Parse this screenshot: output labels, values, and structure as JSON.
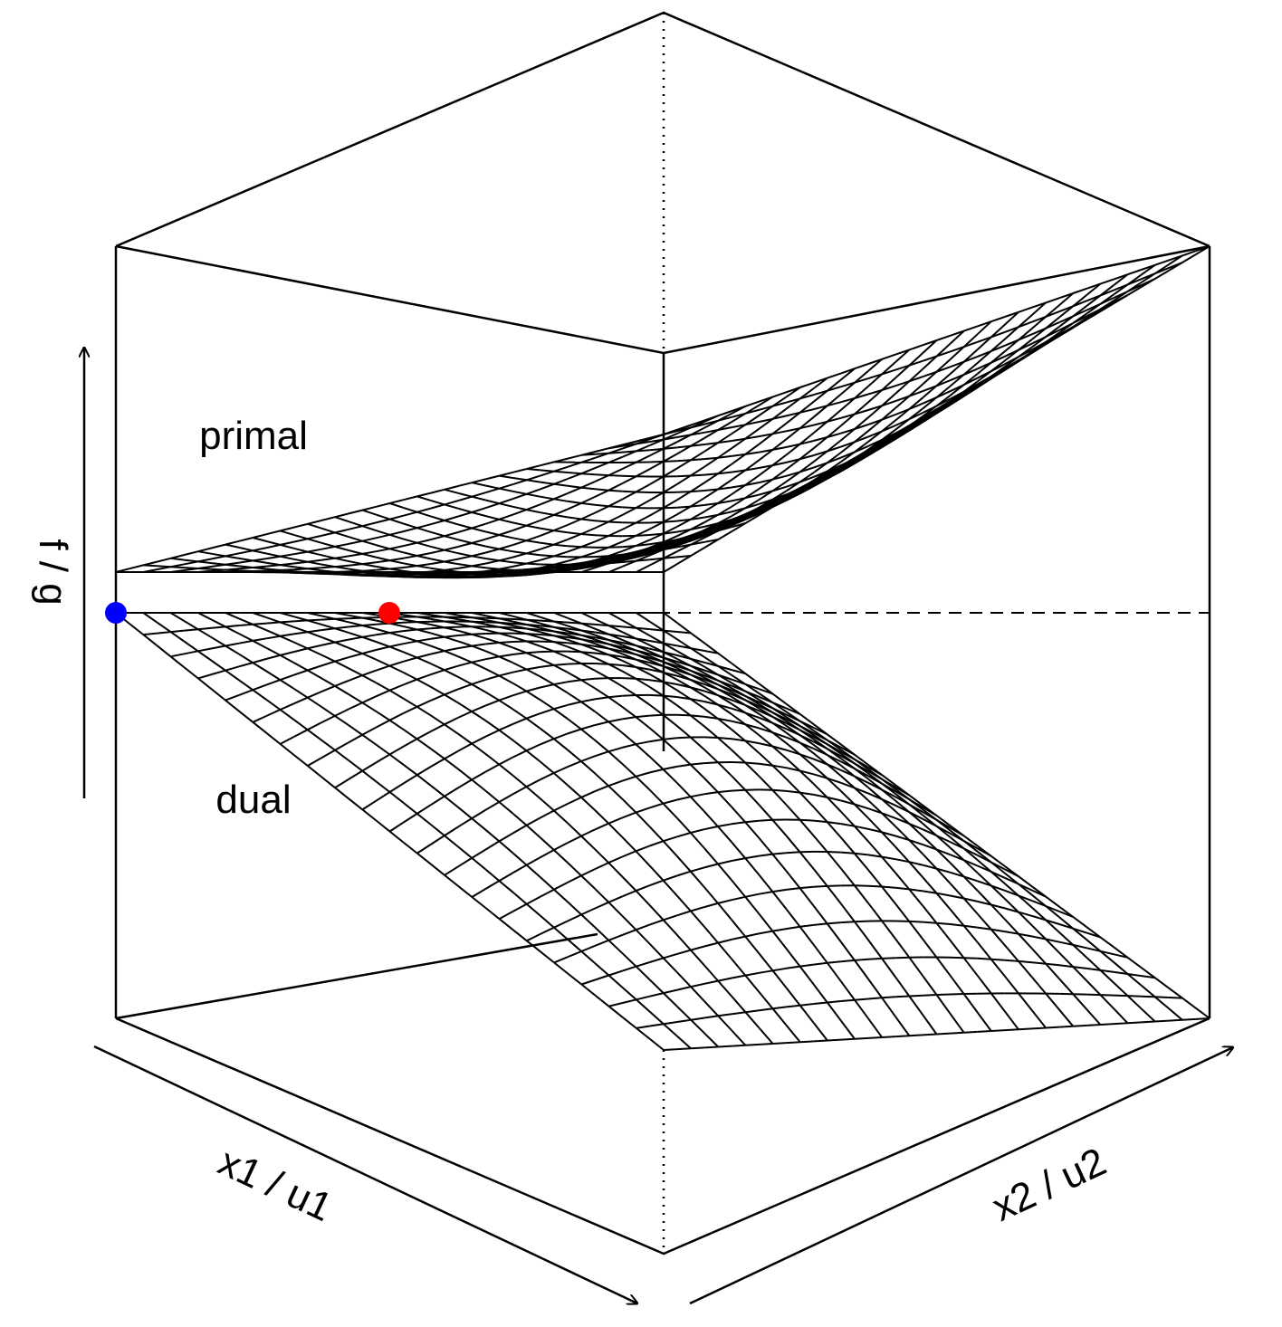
{
  "chart_data": {
    "type": "surface",
    "xlabel": "x1 / u1",
    "ylabel": "x2 / u2",
    "zlabel": "f / g",
    "grid_lines": 21,
    "annotations": [
      {
        "text": "primal"
      },
      {
        "text": "dual"
      }
    ],
    "series": [
      {
        "name": "primal",
        "color": "#000000",
        "curvature": "convex"
      },
      {
        "name": "dual",
        "color": "#000000",
        "curvature": "concave"
      }
    ],
    "points": [
      {
        "label": "dual optimum",
        "color": "#0000ff"
      },
      {
        "label": "primal optimum",
        "color": "#ff0000"
      }
    ],
    "reference_line": {
      "style": "dashed",
      "meaning": "optimal value f = g"
    }
  }
}
